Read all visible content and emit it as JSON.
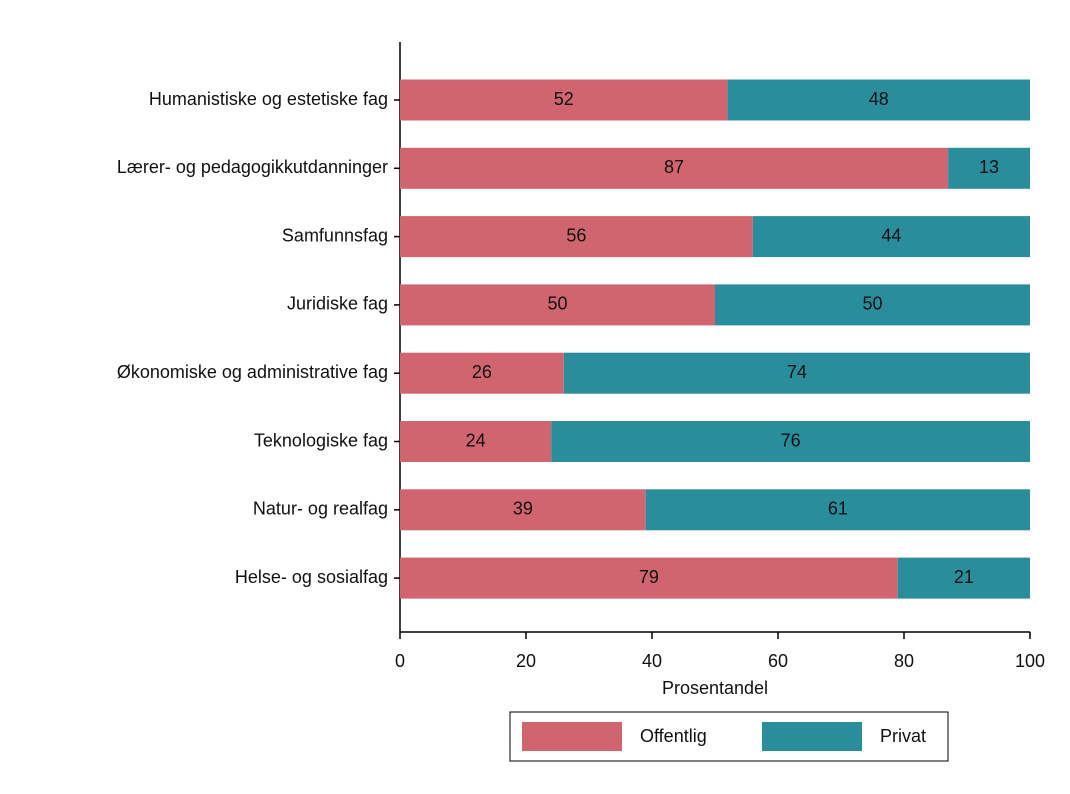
{
  "chart_data": {
    "type": "bar",
    "orientation": "horizontal",
    "stacked": true,
    "categories": [
      "Humanistiske og estetiske fag",
      "Lærer- og pedagogikkutdanninger",
      "Samfunnsfag",
      "Juridiske fag",
      "Økonomiske og administrative fag",
      "Teknologiske fag",
      "Natur- og realfag",
      "Helse- og sosialfag"
    ],
    "series": [
      {
        "name": "Offentlig",
        "color": "#d0646f",
        "values": [
          52,
          87,
          56,
          50,
          26,
          24,
          39,
          79
        ]
      },
      {
        "name": "Privat",
        "color": "#2a8d9c",
        "values": [
          48,
          13,
          44,
          50,
          74,
          76,
          61,
          21
        ]
      }
    ],
    "x_label": "Prosentandel",
    "xlim": [
      0,
      100
    ],
    "xticks": [
      0,
      20,
      40,
      60,
      80,
      100
    ],
    "legend": "bottom",
    "grid": false
  }
}
